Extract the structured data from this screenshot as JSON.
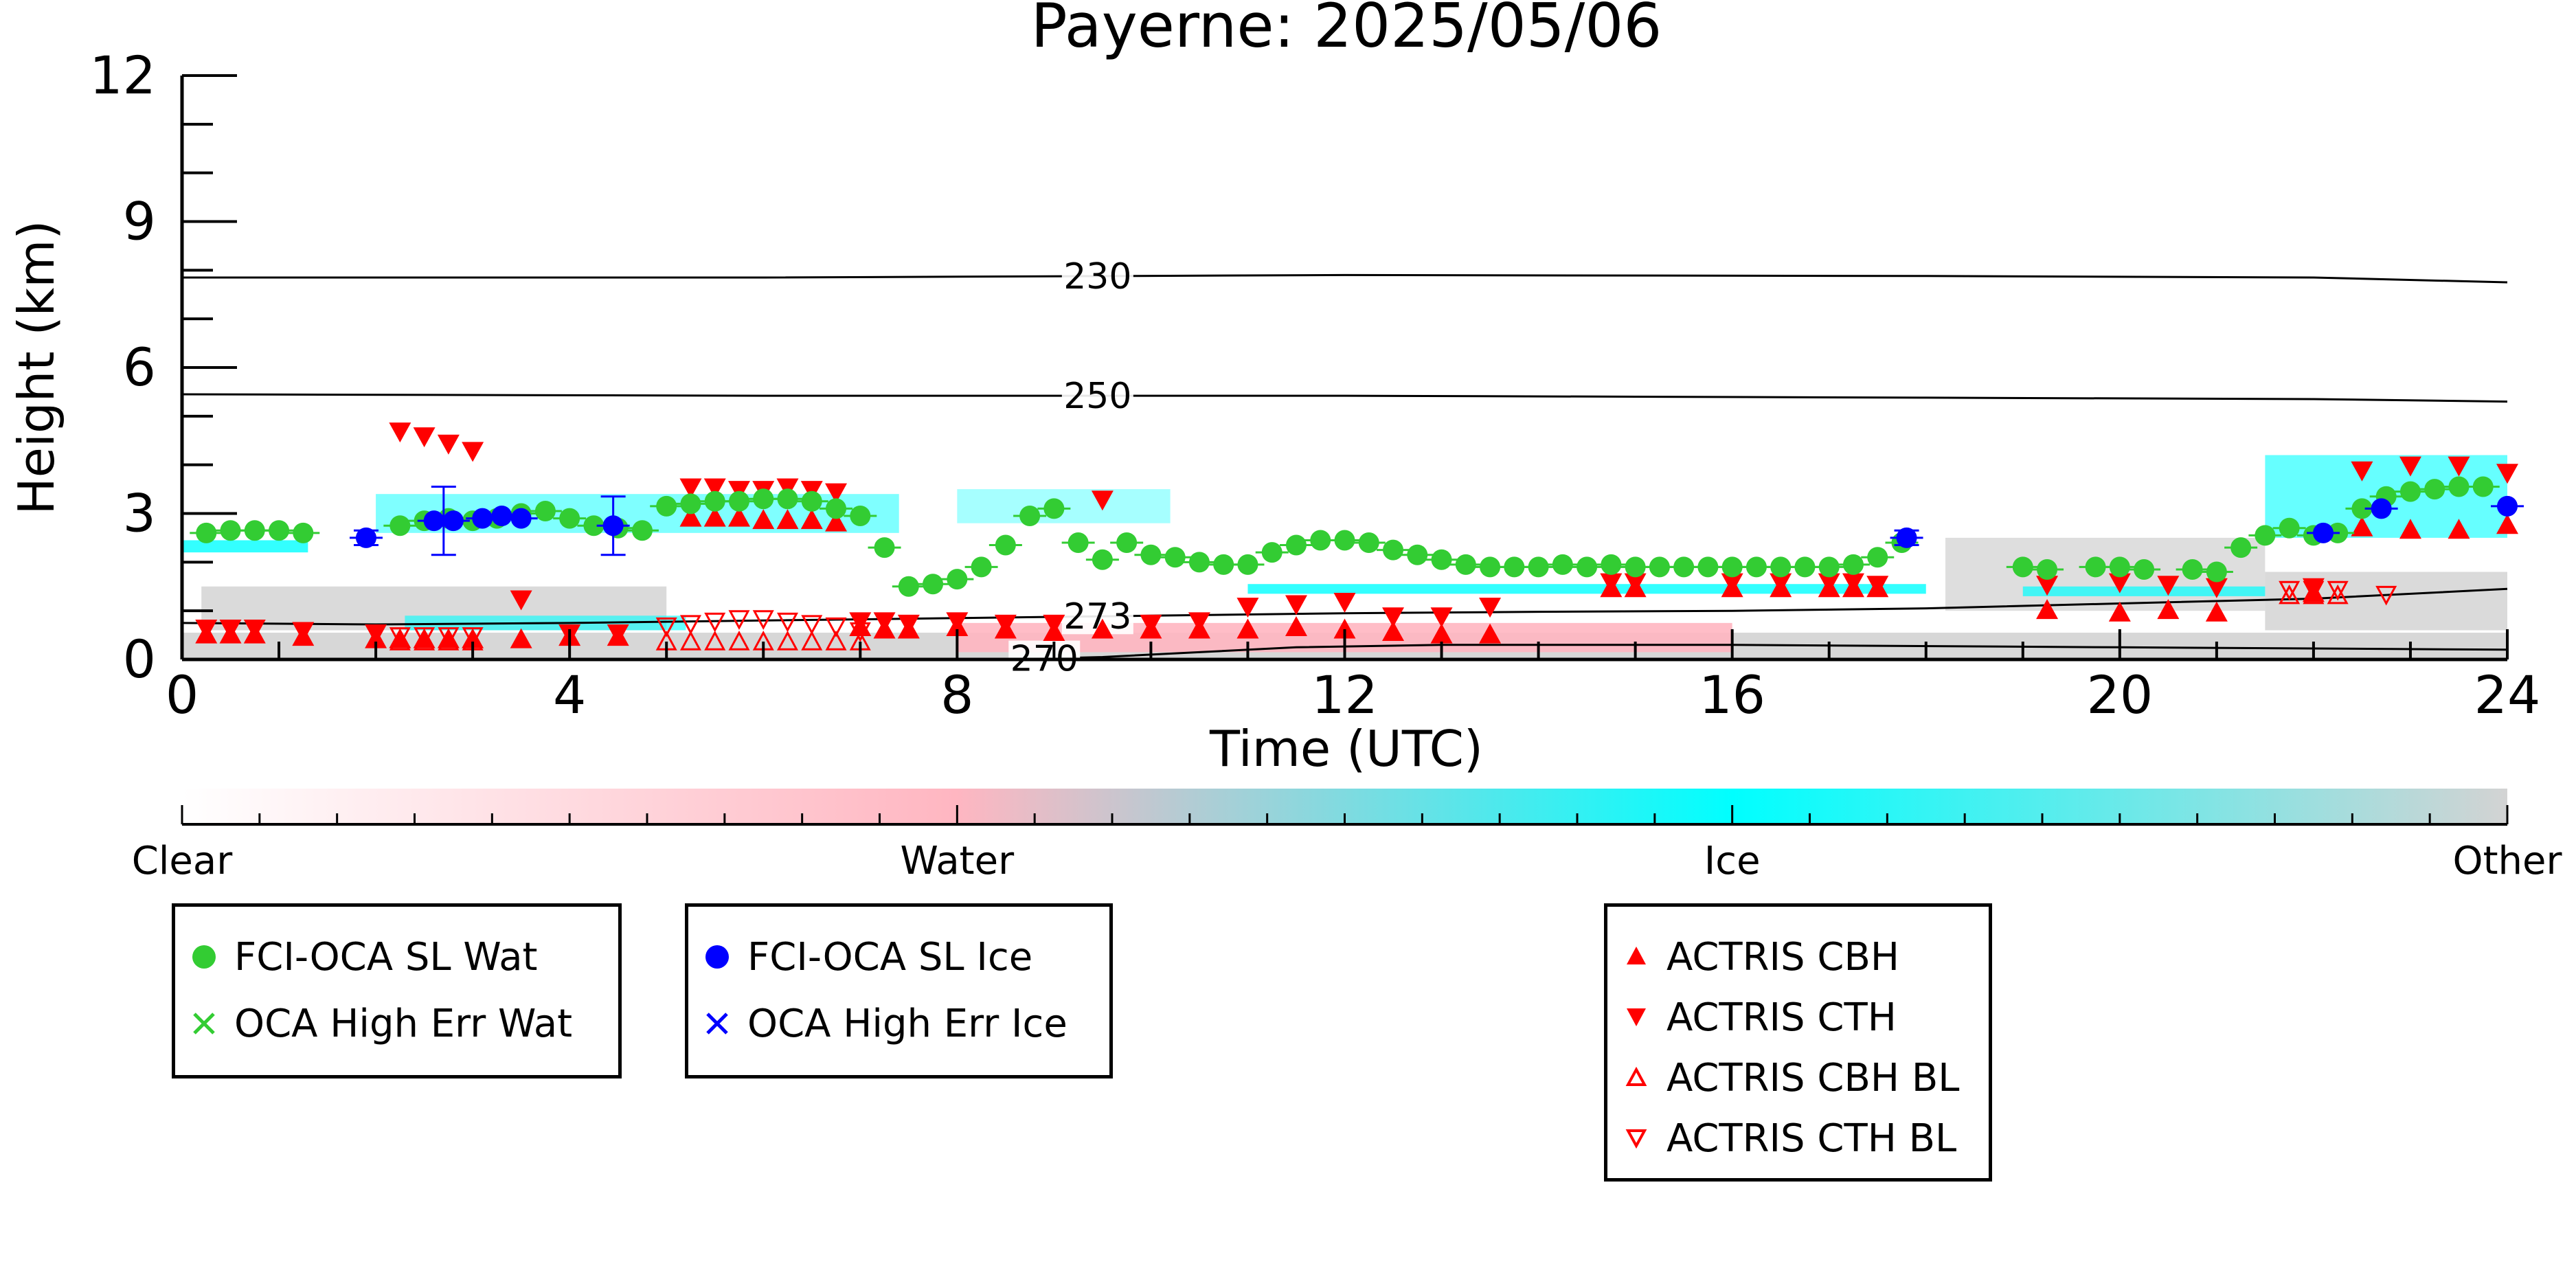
{
  "chart_data": {
    "type": "scatter",
    "title": "Payerne: 2025/05/06",
    "xlabel": "Time (UTC)",
    "ylabel": "Height (km)",
    "xlim": [
      0,
      24
    ],
    "ylim": [
      0,
      12
    ],
    "x_ticks": [
      "0",
      "4",
      "8",
      "12",
      "16",
      "20",
      "24"
    ],
    "y_ticks": [
      "0",
      "3",
      "6",
      "9",
      "12"
    ],
    "contours": [
      {
        "label": "230",
        "x": [
          0,
          6,
          12,
          18,
          22,
          24
        ],
        "y": [
          7.85,
          7.85,
          7.9,
          7.88,
          7.85,
          7.75
        ]
      },
      {
        "label": "250",
        "x": [
          0,
          6,
          12,
          18,
          22,
          24
        ],
        "y": [
          5.45,
          5.42,
          5.42,
          5.38,
          5.35,
          5.3
        ]
      },
      {
        "label": "273",
        "x": [
          0,
          2,
          4,
          6,
          8,
          10,
          12,
          14,
          16,
          18,
          20,
          22,
          24
        ],
        "y": [
          0.75,
          0.72,
          0.75,
          0.8,
          0.85,
          0.9,
          0.95,
          0.98,
          1.0,
          1.05,
          1.15,
          1.25,
          1.45
        ]
      },
      {
        "label": "270",
        "x": [
          8.5,
          9.5,
          10.5,
          11.5,
          13,
          16,
          20,
          24
        ],
        "y": [
          0.0,
          0.05,
          0.15,
          0.25,
          0.3,
          0.3,
          0.25,
          0.2
        ]
      }
    ],
    "colorbar": {
      "labels": [
        "Clear",
        "Water",
        "Ice",
        "Other"
      ],
      "colors": [
        "#ffffff",
        "#ffb6c1",
        "#00ffff",
        "#d3d3d3"
      ]
    },
    "series": [
      {
        "name": "FCI-OCA SL Wat",
        "marker": "circle",
        "color": "#33cc33",
        "x": [
          0.25,
          0.5,
          0.75,
          1.0,
          1.25,
          2.25,
          2.5,
          2.75,
          3.0,
          3.25,
          3.5,
          3.75,
          4.0,
          4.25,
          4.5,
          4.75,
          5.0,
          5.25,
          5.5,
          5.75,
          6.0,
          6.25,
          6.5,
          6.75,
          7.0,
          7.25,
          7.5,
          7.75,
          8.0,
          8.25,
          8.5,
          8.75,
          9.0,
          9.25,
          9.5,
          9.75,
          10.0,
          10.25,
          10.5,
          10.75,
          11.0,
          11.25,
          11.5,
          11.75,
          12.0,
          12.25,
          12.5,
          12.75,
          13.0,
          13.25,
          13.5,
          13.75,
          14.0,
          14.25,
          14.5,
          14.75,
          15.0,
          15.25,
          15.5,
          15.75,
          16.0,
          16.25,
          16.5,
          16.75,
          17.0,
          17.25,
          17.5,
          17.75,
          19.0,
          19.25,
          19.75,
          20.0,
          20.25,
          20.75,
          21.0,
          21.25,
          21.5,
          21.75,
          22.0,
          22.25,
          22.5,
          22.75,
          23.0,
          23.25,
          23.5,
          23.75
        ],
        "y": [
          2.6,
          2.65,
          2.65,
          2.65,
          2.6,
          2.75,
          2.85,
          2.9,
          2.85,
          2.9,
          3.0,
          3.05,
          2.9,
          2.75,
          2.7,
          2.65,
          3.15,
          3.2,
          3.25,
          3.25,
          3.3,
          3.3,
          3.25,
          3.1,
          2.95,
          2.3,
          1.5,
          1.55,
          1.65,
          1.9,
          2.35,
          2.95,
          3.1,
          2.4,
          2.05,
          2.4,
          2.15,
          2.1,
          2.0,
          1.95,
          1.95,
          2.2,
          2.35,
          2.45,
          2.45,
          2.4,
          2.25,
          2.15,
          2.05,
          1.95,
          1.9,
          1.9,
          1.9,
          1.95,
          1.9,
          1.95,
          1.9,
          1.9,
          1.9,
          1.9,
          1.9,
          1.9,
          1.9,
          1.9,
          1.9,
          1.95,
          2.1,
          2.4,
          1.9,
          1.85,
          1.9,
          1.9,
          1.85,
          1.85,
          1.8,
          2.3,
          2.55,
          2.7,
          2.55,
          2.6,
          3.1,
          3.35,
          3.45,
          3.5,
          3.55,
          3.55
        ]
      },
      {
        "name": "OCA High Err Wat",
        "marker": "x",
        "color": "#33cc33",
        "x": [],
        "y": []
      },
      {
        "name": "FCI-OCA SL Ice",
        "marker": "circle",
        "color": "#0000ff",
        "x": [
          1.9,
          2.6,
          2.8,
          3.1,
          3.3,
          3.5,
          4.45,
          17.8,
          22.1,
          22.7,
          24.0
        ],
        "y": [
          2.5,
          2.85,
          2.85,
          2.9,
          2.95,
          2.9,
          2.75,
          2.5,
          2.6,
          3.1,
          3.15
        ]
      },
      {
        "name": "OCA High Err Ice",
        "marker": "x",
        "color": "#0000ff",
        "x": [],
        "y": []
      },
      {
        "name": "ACTRIS CBH",
        "marker": "triangle-up",
        "color": "#ff0000",
        "x": [
          0.25,
          0.5,
          0.75,
          1.25,
          2.0,
          2.25,
          2.5,
          2.75,
          3.0,
          3.5,
          4.0,
          4.5,
          5.25,
          5.5,
          5.75,
          6.0,
          6.25,
          6.5,
          6.75,
          7.0,
          7.25,
          7.5,
          8.0,
          8.5,
          9.0,
          9.5,
          10.0,
          10.5,
          11.0,
          11.5,
          12.0,
          12.5,
          13.0,
          13.5,
          14.75,
          15.0,
          16.0,
          16.5,
          17.0,
          17.25,
          17.5,
          19.25,
          20.0,
          20.5,
          21.0,
          22.0,
          22.5,
          23.0,
          23.5,
          24.0
        ],
        "y": [
          0.5,
          0.5,
          0.5,
          0.45,
          0.4,
          0.4,
          0.4,
          0.4,
          0.4,
          0.4,
          0.45,
          0.45,
          2.9,
          2.9,
          2.9,
          2.85,
          2.85,
          2.85,
          2.8,
          0.65,
          0.6,
          0.6,
          0.65,
          0.6,
          0.55,
          0.6,
          0.6,
          0.6,
          0.6,
          0.65,
          0.6,
          0.55,
          0.5,
          0.5,
          1.45,
          1.45,
          1.45,
          1.45,
          1.45,
          1.45,
          1.45,
          1.0,
          0.95,
          1.0,
          0.95,
          1.35,
          2.7,
          2.65,
          2.65,
          2.75
        ]
      },
      {
        "name": "ACTRIS CTH",
        "marker": "triangle-down",
        "color": "#ff0000",
        "x": [
          0.25,
          0.5,
          0.75,
          1.25,
          2.0,
          2.25,
          2.5,
          2.75,
          3.0,
          3.5,
          4.0,
          4.5,
          5.25,
          5.5,
          5.75,
          6.0,
          6.25,
          6.5,
          6.75,
          7.0,
          7.25,
          7.5,
          8.0,
          8.5,
          9.0,
          9.5,
          10.0,
          10.5,
          11.0,
          11.5,
          12.0,
          12.5,
          13.0,
          13.5,
          14.75,
          15.0,
          16.0,
          16.5,
          17.0,
          17.25,
          17.5,
          19.25,
          20.0,
          20.5,
          21.0,
          22.0,
          22.5,
          23.0,
          23.5,
          24.0
        ],
        "y": [
          0.65,
          0.65,
          0.65,
          0.6,
          0.55,
          4.7,
          4.6,
          4.45,
          4.3,
          1.25,
          0.55,
          0.55,
          3.55,
          3.55,
          3.5,
          3.5,
          3.55,
          3.5,
          3.45,
          0.8,
          0.8,
          0.75,
          0.8,
          0.75,
          0.75,
          3.3,
          0.75,
          0.8,
          1.1,
          1.15,
          1.2,
          0.9,
          0.9,
          1.1,
          1.6,
          1.6,
          1.6,
          1.6,
          1.6,
          1.6,
          1.55,
          1.55,
          1.6,
          1.55,
          1.5,
          1.5,
          3.9,
          4.0,
          4.0,
          3.85
        ]
      },
      {
        "name": "ACTRIS CBH BL",
        "marker": "triangle-up-open",
        "color": "#ff0000",
        "x": [
          2.25,
          2.5,
          2.75,
          3.0,
          5.0,
          5.25,
          5.5,
          5.75,
          6.0,
          6.25,
          6.5,
          6.75,
          7.0,
          21.75,
          22.0,
          22.25
        ],
        "y": [
          0.35,
          0.35,
          0.35,
          0.35,
          0.35,
          0.35,
          0.35,
          0.35,
          0.35,
          0.35,
          0.35,
          0.35,
          0.35,
          1.3,
          1.3,
          1.3
        ]
      },
      {
        "name": "ACTRIS CTH BL",
        "marker": "triangle-down-open",
        "color": "#ff0000",
        "x": [
          2.25,
          2.5,
          2.75,
          3.0,
          5.0,
          5.25,
          5.5,
          5.75,
          6.0,
          6.25,
          6.5,
          6.75,
          7.0,
          21.75,
          22.0,
          22.25,
          22.75
        ],
        "y": [
          0.5,
          0.5,
          0.5,
          0.5,
          0.7,
          0.75,
          0.8,
          0.85,
          0.85,
          0.8,
          0.75,
          0.7,
          0.6,
          1.45,
          1.45,
          1.45,
          1.35
        ]
      }
    ]
  },
  "legends": [
    {
      "items": [
        {
          "label": "FCI-OCA SL Wat",
          "marker": "circle",
          "color": "#33cc33"
        },
        {
          "label": "OCA High Err Wat",
          "marker": "x",
          "color": "#33cc33"
        }
      ]
    },
    {
      "items": [
        {
          "label": "FCI-OCA SL Ice",
          "marker": "circle",
          "color": "#0000ff"
        },
        {
          "label": "OCA High Err Ice",
          "marker": "x",
          "color": "#0000ff"
        }
      ]
    },
    {
      "items": [
        {
          "label": "ACTRIS CBH",
          "marker": "triangle-up",
          "color": "#ff0000"
        },
        {
          "label": "ACTRIS CTH",
          "marker": "triangle-down",
          "color": "#ff0000"
        },
        {
          "label": "ACTRIS CBH BL",
          "marker": "triangle-up-open",
          "color": "#ff0000"
        },
        {
          "label": "ACTRIS CTH BL",
          "marker": "triangle-down-open",
          "color": "#ff0000"
        }
      ]
    }
  ]
}
